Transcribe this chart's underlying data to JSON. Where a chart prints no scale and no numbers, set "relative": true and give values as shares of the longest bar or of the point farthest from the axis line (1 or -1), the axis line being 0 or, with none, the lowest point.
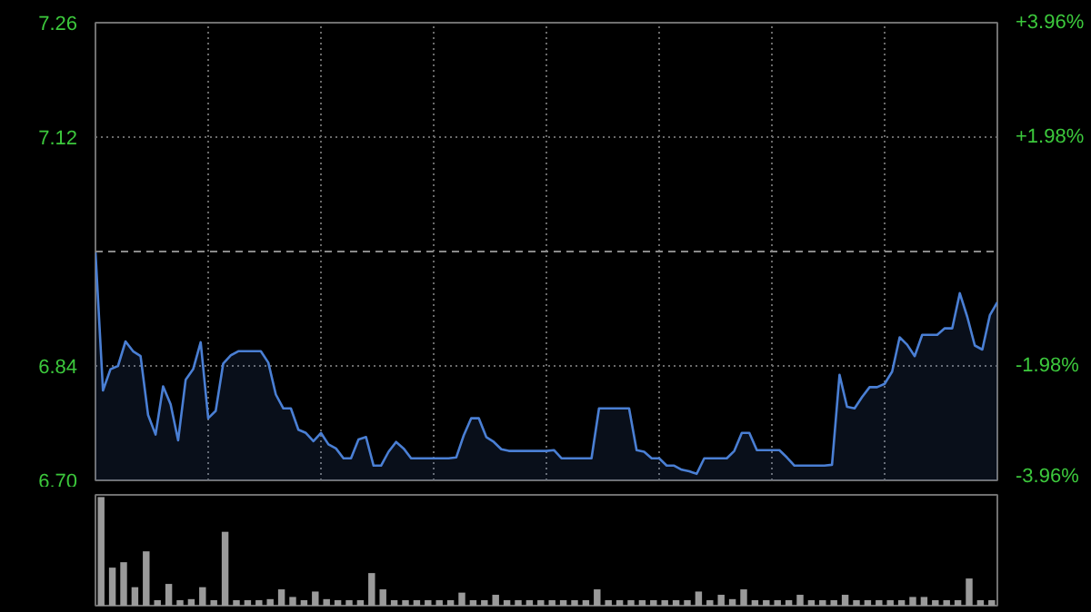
{
  "chart_data": [
    {
      "type": "area",
      "categories": [
        null,
        null,
        null,
        null,
        null,
        null,
        null,
        null,
        null,
        null,
        null,
        null,
        null,
        null,
        null,
        null,
        null,
        null,
        null,
        null,
        null,
        null,
        null,
        null,
        null,
        null,
        null,
        null,
        null,
        null,
        null,
        null,
        null,
        null,
        null,
        null,
        null,
        null,
        null,
        null,
        null,
        null,
        null,
        null,
        null,
        null,
        null,
        null,
        null,
        null,
        null,
        null,
        null,
        null,
        null,
        null,
        null,
        null,
        null,
        null,
        null,
        null,
        null,
        null,
        null,
        null,
        null,
        null,
        null,
        null,
        null,
        null,
        null,
        null,
        null,
        null,
        null,
        null,
        null,
        null,
        null,
        null,
        null,
        null,
        null,
        null,
        null,
        null,
        null,
        null,
        null,
        null,
        null,
        null,
        null,
        null,
        null,
        null,
        null,
        null,
        null,
        null,
        null,
        null,
        null,
        null,
        null,
        null,
        null,
        null,
        null,
        null,
        null,
        null,
        null,
        null,
        null,
        null,
        null,
        null,
        null
      ],
      "series": [
        {
          "color": "#4a7fd4",
          "values": [
            6.98,
            6.81,
            6.836,
            6.84,
            6.87,
            6.858,
            6.852,
            6.78,
            6.756,
            6.815,
            6.793,
            6.749,
            6.823,
            6.836,
            6.869,
            6.776,
            6.785,
            6.843,
            6.853,
            6.858,
            6.858,
            6.858,
            6.858,
            6.844,
            6.805,
            6.788,
            6.788,
            6.762,
            6.758,
            6.748,
            6.758,
            6.744,
            6.739,
            6.727,
            6.727,
            6.75,
            6.753,
            6.718,
            6.718,
            6.735,
            6.747,
            6.739,
            6.727,
            6.727,
            6.727,
            6.727,
            6.727,
            6.727,
            6.728,
            6.755,
            6.776,
            6.776,
            6.753,
            6.747,
            6.738,
            6.736,
            6.736,
            6.736,
            6.736,
            6.736,
            6.736,
            6.737,
            6.727,
            6.727,
            6.727,
            6.727,
            6.727,
            6.788,
            6.788,
            6.788,
            6.788,
            6.788,
            6.737,
            6.735,
            6.727,
            6.727,
            6.718,
            6.718,
            6.713,
            6.711,
            6.708,
            6.727,
            6.727,
            6.727,
            6.727,
            6.736,
            6.758,
            6.758,
            6.737,
            6.737,
            6.737,
            6.737,
            6.728,
            6.718,
            6.718,
            6.718,
            6.718,
            6.718,
            6.719,
            6.829,
            6.79,
            6.788,
            6.802,
            6.814,
            6.814,
            6.818,
            6.833,
            6.875,
            6.866,
            6.852,
            6.878,
            6.878,
            6.878,
            6.886,
            6.886,
            6.929,
            6.9,
            6.865,
            6.86,
            6.902,
            6.918
          ]
        }
      ],
      "ylim": [
        6.7,
        7.26
      ],
      "yticks": [
        {
          "value": 6.7,
          "label": "6.70"
        },
        {
          "value": 6.84,
          "label": "6.84"
        },
        {
          "value": 6.98,
          "label": null
        },
        {
          "value": 7.12,
          "label": "7.12"
        },
        {
          "value": 7.26,
          "label": "7.26"
        }
      ],
      "y2lim": [
        -3.96,
        3.96
      ],
      "y2ticks": [
        {
          "value": -3.96,
          "label": "-3.96%"
        },
        {
          "value": -1.98,
          "label": "-1.98%"
        },
        {
          "value": 0,
          "label": null
        },
        {
          "value": 1.98,
          "label": "+1.98%"
        },
        {
          "value": 3.96,
          "label": "+3.96%"
        }
      ],
      "ref_lines": [
        {
          "axis": "y",
          "value": 6.98,
          "color": "#8a8a8a",
          "line_style": "dashed"
        }
      ],
      "grid": true,
      "tick_labels": "y",
      "line_style": "solid"
    },
    {
      "type": "bar",
      "categories": [
        null,
        null,
        null,
        null,
        null,
        null,
        null,
        null,
        null,
        null,
        null,
        null,
        null,
        null,
        null,
        null,
        null,
        null,
        null,
        null,
        null,
        null,
        null,
        null,
        null,
        null,
        null,
        null,
        null,
        null,
        null,
        null,
        null,
        null,
        null,
        null,
        null,
        null,
        null,
        null,
        null,
        null,
        null,
        null,
        null,
        null,
        null,
        null,
        null,
        null,
        null,
        null,
        null,
        null,
        null,
        null,
        null,
        null,
        null,
        null,
        null,
        null,
        null,
        null,
        null,
        null,
        null,
        null,
        null,
        null,
        null,
        null,
        null,
        null,
        null,
        null,
        null,
        null,
        null,
        null
      ],
      "values": [
        1.0,
        0.35,
        0.4,
        0.17,
        0.5,
        0.05,
        0.2,
        0.05,
        0.06,
        0.17,
        0.05,
        0.68,
        0.05,
        0.05,
        0.05,
        0.06,
        0.15,
        0.08,
        0.05,
        0.13,
        0.06,
        0.05,
        0.05,
        0.05,
        0.3,
        0.15,
        0.05,
        0.05,
        0.05,
        0.05,
        0.05,
        0.05,
        0.12,
        0.05,
        0.05,
        0.1,
        0.05,
        0.05,
        0.05,
        0.05,
        0.05,
        0.05,
        0.05,
        0.05,
        0.15,
        0.05,
        0.05,
        0.05,
        0.05,
        0.05,
        0.05,
        0.05,
        0.05,
        0.13,
        0.05,
        0.1,
        0.06,
        0.15,
        0.05,
        0.05,
        0.05,
        0.05,
        0.1,
        0.05,
        0.05,
        0.05,
        0.1,
        0.05,
        0.05,
        0.05,
        0.05,
        0.05,
        0.08,
        0.08,
        0.05,
        0.05,
        0.05,
        0.25,
        0.05,
        0.05
      ],
      "color": "#9a9a9a",
      "relative": true
    }
  ]
}
